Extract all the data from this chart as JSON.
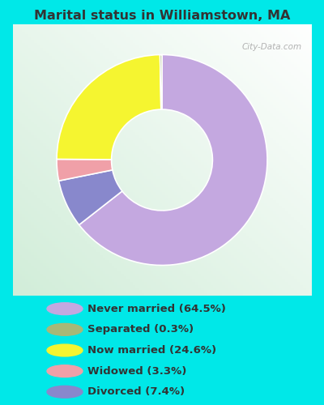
{
  "title": "Marital status in Williamstown, MA",
  "slices": [
    64.5,
    7.4,
    3.3,
    24.6,
    0.3
  ],
  "slice_order_labels": [
    "Never married",
    "Divorced",
    "Widowed",
    "Now married",
    "Separated"
  ],
  "labels": [
    "Never married (64.5%)",
    "Separated (0.3%)",
    "Now married (24.6%)",
    "Widowed (3.3%)",
    "Divorced (7.4%)"
  ],
  "pie_colors": [
    "#c4a8e0",
    "#8888cc",
    "#f0a0a8",
    "#f5f530",
    "#a8b878"
  ],
  "legend_colors": [
    "#c4a8e0",
    "#a8b878",
    "#f5f530",
    "#f0a0a8",
    "#8888cc"
  ],
  "bg_outer": "#00e8e8",
  "title_color": "#333333",
  "legend_text_color": "#333333",
  "watermark": "City-Data.com"
}
